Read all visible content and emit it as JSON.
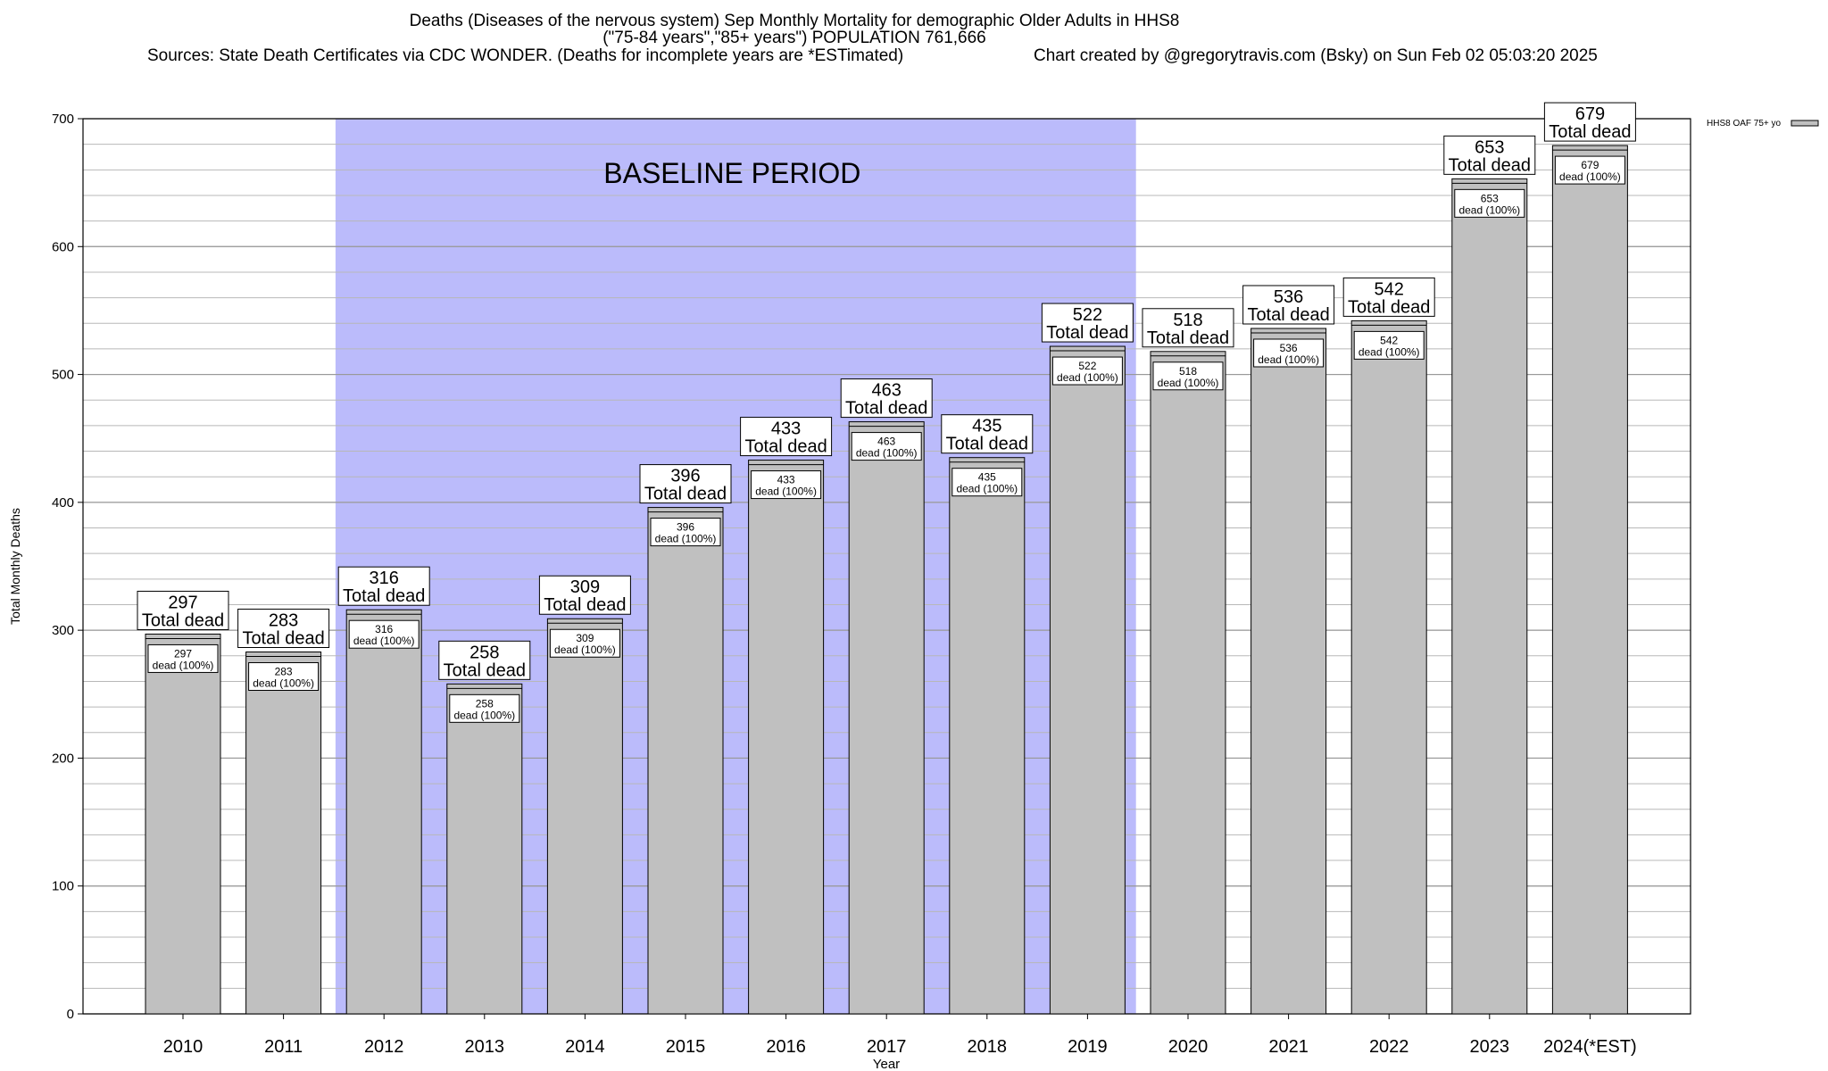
{
  "chart_data": {
    "type": "bar",
    "title": "Deaths (Diseases of the nervous system) Sep Monthly Mortality for demographic Older Adults in HHS8",
    "subtitle": "(\"75-84 years\",\"85+ years\") POPULATION 761,666",
    "sources": "Sources: State Death Certificates via CDC WONDER. (Deaths for incomplete years are *ESTimated)",
    "credit": "Chart created by @gregorytravis.com (Bsky) on Sun Feb 02 05:03:20 2025",
    "xlabel": "Year",
    "ylabel": "Total Monthly Deaths",
    "ylim": [
      0,
      700
    ],
    "yticks": [
      0,
      100,
      200,
      300,
      400,
      500,
      600,
      700
    ],
    "minor_grid_step": 20,
    "grid": true,
    "legend": {
      "position": "top-right",
      "label": "HHS8 OAF 75+ yo"
    },
    "categories": [
      "2010",
      "2011",
      "2012",
      "2013",
      "2014",
      "2015",
      "2016",
      "2017",
      "2018",
      "2019",
      "2020",
      "2021",
      "2022",
      "2023",
      "2024(*EST)"
    ],
    "series": [
      {
        "name": "HHS8 OAF 75+ yo",
        "values": [
          297,
          283,
          316,
          258,
          309,
          396,
          433,
          463,
          435,
          522,
          518,
          536,
          542,
          653,
          679
        ]
      }
    ],
    "total_label": "Total dead",
    "inner_label": "dead (100%)",
    "baseline_period": {
      "label": "BASELINE PERIOD",
      "start": "2012",
      "end": "2019"
    },
    "colors": {
      "bar": "#c0c0c0",
      "baseline": "#bbbbfb",
      "grid": "#b8b8b8"
    }
  }
}
